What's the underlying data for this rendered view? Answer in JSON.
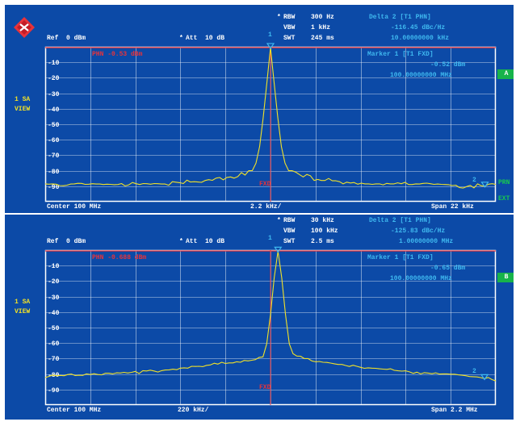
{
  "colors": {
    "background": "#0c4aa7",
    "text": "#ffffff",
    "marker_text": "#3fb9f0",
    "reference_line": "#e8333a",
    "trace": "#f2e227",
    "badge": "#17b34a",
    "grid": "#ffffff"
  },
  "logo": {
    "icon": "rohde-schwarz-diamond-icon"
  },
  "panels": [
    {
      "header": {
        "rbw_star": "*",
        "rbw_label": "RBW",
        "rbw_value": "300 Hz",
        "vbw_label": "VBW",
        "vbw_value": "1 kHz",
        "swt_label": "SWT",
        "swt_value": "245 ms",
        "ref": "Ref  0 dBm",
        "att_star": "*",
        "att": "Att  10 dB",
        "marker_num": "1"
      },
      "delta": {
        "title": "Delta 2 [T1 PHN]",
        "value1": "-116.45 dBc/Hz",
        "value2": "10.00000000 kHz"
      },
      "marker": {
        "title": "Marker 1 [T1 FXD]",
        "value1": "-0.52 dBm",
        "value2": "100.00000000 MHz"
      },
      "phn": "PHN -0.53 dBm",
      "fxd": "FXD",
      "side": {
        "line1": "1 SA",
        "line2": "VIEW"
      },
      "badge": "A",
      "right_labels": {
        "top": "PRN",
        "bottom": "EXT"
      },
      "marker2": "2",
      "footer": {
        "center": "Center 100 MHz",
        "div": "2.2 kHz/",
        "span": "Span 22 kHz"
      },
      "y_ticks": [
        "-10",
        "-20",
        "-30",
        "-40",
        "-50",
        "-60",
        "-70",
        "-80",
        "-90"
      ],
      "chart_data": {
        "type": "line",
        "x_axis": "frequency offset",
        "ylim": [
          -100,
          0
        ],
        "y_unit": "dBm",
        "series": [
          {
            "values": [
              -88.5,
              -88.7,
              -88.5,
              -88.7,
              -89.6,
              -89.7,
              -89.3,
              -88.6,
              -88.5,
              -88.1,
              -88.2,
              -88.8,
              -88.7,
              -88.4,
              -88.6,
              -88.6,
              -88.9,
              -88.7,
              -88.8,
              -89.0,
              -88.9,
              -88.3,
              -89.8,
              -89.1,
              -87.6,
              -88.4,
              -88.9,
              -88.3,
              -88.4,
              -88.7,
              -88.3,
              -88.4,
              -88.6,
              -88.6,
              -89.4,
              -87.1,
              -87.4,
              -87.7,
              -88.3,
              -86.1,
              -87.3,
              -87.1,
              -87.3,
              -87.5,
              -86.3,
              -85.8,
              -86.2,
              -84.8,
              -84.4,
              -85.9,
              -84.3,
              -84.0,
              -84.8,
              -83.8,
              -81.2,
              -82.8,
              -80.0,
              -79.9,
              -75.1,
              -64.5,
              -45.5,
              -23.3,
              -0.5,
              -23.3,
              -45.5,
              -64.5,
              -75.1,
              -80.0,
              -80.0,
              -81.0,
              -82.5,
              -84.0,
              -82.4,
              -83.3,
              -86.3,
              -85.6,
              -86.3,
              -86.3,
              -85.0,
              -86.5,
              -86.5,
              -87.1,
              -88.5,
              -87.4,
              -87.9,
              -87.6,
              -88.7,
              -88.0,
              -88.5,
              -88.5,
              -88.8,
              -88.5,
              -88.5,
              -89.1,
              -88.2,
              -88.5,
              -88.5,
              -87.8,
              -88.4,
              -87.5,
              -88.9,
              -88.9,
              -88.5,
              -88.6,
              -88.2,
              -88.0,
              -88.4,
              -88.8,
              -88.6,
              -88.8,
              -88.9,
              -89.0,
              -89.6,
              -89.3,
              -90.9,
              -91.2,
              -90.2,
              -89.5,
              -91.1,
              -88.5,
              -89.7,
              -90.0,
              -88.7,
              -88.4,
              -88.8
            ]
          }
        ]
      }
    },
    {
      "header": {
        "rbw_star": "*",
        "rbw_label": "RBW",
        "rbw_value": "30 kHz",
        "vbw_label": "VBW",
        "vbw_value": "100 kHz",
        "swt_label": "SWT",
        "swt_value": "2.5 ms",
        "ref": "Ref  0 dBm",
        "att_star": "*",
        "att": "Att  10 dB",
        "marker_num": "1"
      },
      "delta": {
        "title": "Delta 2 [T1 PHN]",
        "value1": "-125.83 dBc/Hz",
        "value2": "1.00000000 MHz"
      },
      "marker": {
        "title": "Marker 1 [T1 FXD]",
        "value1": "-0.65 dBm",
        "value2": "100.00000000 MHz"
      },
      "phn": "PHN -0.688 dBm",
      "fxd": "FXD",
      "side": {
        "line1": "1 SA",
        "line2": "VIEW"
      },
      "badge": "B",
      "marker2": "2",
      "footer": {
        "center": "Center 100 MHz",
        "div": "220 kHz/",
        "span": "Span 2.2 MHz"
      },
      "y_ticks": [
        "-10",
        "-20",
        "-30",
        "-40",
        "-50",
        "-60",
        "-70",
        "-80",
        "-90"
      ],
      "chart_data": {
        "type": "line",
        "x_axis": "frequency offset",
        "ylim": [
          -100,
          0
        ],
        "y_unit": "dBm",
        "series": [
          {
            "values": [
              -82.3,
              -81.5,
              -80.6,
              -81.1,
              -80.9,
              -81.1,
              -80.3,
              -80.0,
              -81.0,
              -80.8,
              -80.9,
              -79.9,
              -80.3,
              -79.8,
              -80.3,
              -80.5,
              -79.5,
              -79.5,
              -79.9,
              -79.2,
              -79.3,
              -78.9,
              -79.3,
              -78.9,
              -78.3,
              -79.7,
              -77.8,
              -78.0,
              -77.5,
              -78.0,
              -78.7,
              -77.8,
              -77.4,
              -77.3,
              -76.9,
              -77.2,
              -76.2,
              -76.0,
              -76.2,
              -75.0,
              -75.1,
              -75.0,
              -75.2,
              -74.4,
              -74.1,
              -73.0,
              -73.6,
              -72.4,
              -73.2,
              -72.8,
              -72.8,
              -72.1,
              -72.4,
              -71.2,
              -71.5,
              -71.1,
              -70.7,
              -69.2,
              -68.9,
              -60.5,
              -41.7,
              -17.8,
              -0.7,
              -17.8,
              -41.7,
              -60.5,
              -66.9,
              -68.4,
              -68.5,
              -70.0,
              -70.0,
              -71.5,
              -72.1,
              -71.9,
              -72.4,
              -72.5,
              -72.9,
              -73.4,
              -73.8,
              -73.8,
              -74.5,
              -75.1,
              -74.3,
              -75.0,
              -75.7,
              -76.3,
              -76.0,
              -76.2,
              -76.3,
              -76.6,
              -76.8,
              -77.0,
              -76.6,
              -77.6,
              -77.9,
              -78.1,
              -77.9,
              -78.6,
              -79.6,
              -78.8,
              -79.9,
              -79.1,
              -79.4,
              -79.8,
              -79.2,
              -80.0,
              -79.9,
              -79.9,
              -80.1,
              -80.1,
              -80.5,
              -80.8,
              -81.1,
              -81.6,
              -81.7,
              -81.9,
              -82.3,
              -83.0,
              -82.2,
              -83.6,
              -84.5
            ]
          }
        ]
      }
    }
  ]
}
